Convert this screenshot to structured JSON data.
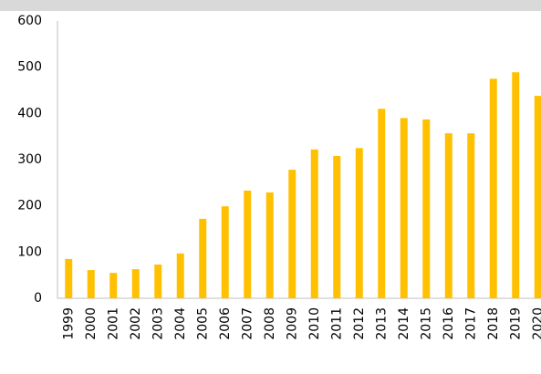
{
  "chart_data": {
    "type": "bar",
    "categories": [
      "1999",
      "2000",
      "2001",
      "2002",
      "2003",
      "2004",
      "2005",
      "2006",
      "2007",
      "2008",
      "2009",
      "2010",
      "2011",
      "2012",
      "2013",
      "2014",
      "2015",
      "2016",
      "2017",
      "2018",
      "2019",
      "2020"
    ],
    "values": [
      85,
      61,
      55,
      63,
      73,
      97,
      172,
      199,
      233,
      229,
      278,
      322,
      308,
      325,
      410,
      390,
      387,
      357,
      357,
      475,
      489,
      438
    ],
    "color": "#ffc000",
    "ylim": [
      0,
      600
    ],
    "yticks": [
      0,
      100,
      200,
      300,
      400,
      500,
      600
    ],
    "grid": false
  }
}
